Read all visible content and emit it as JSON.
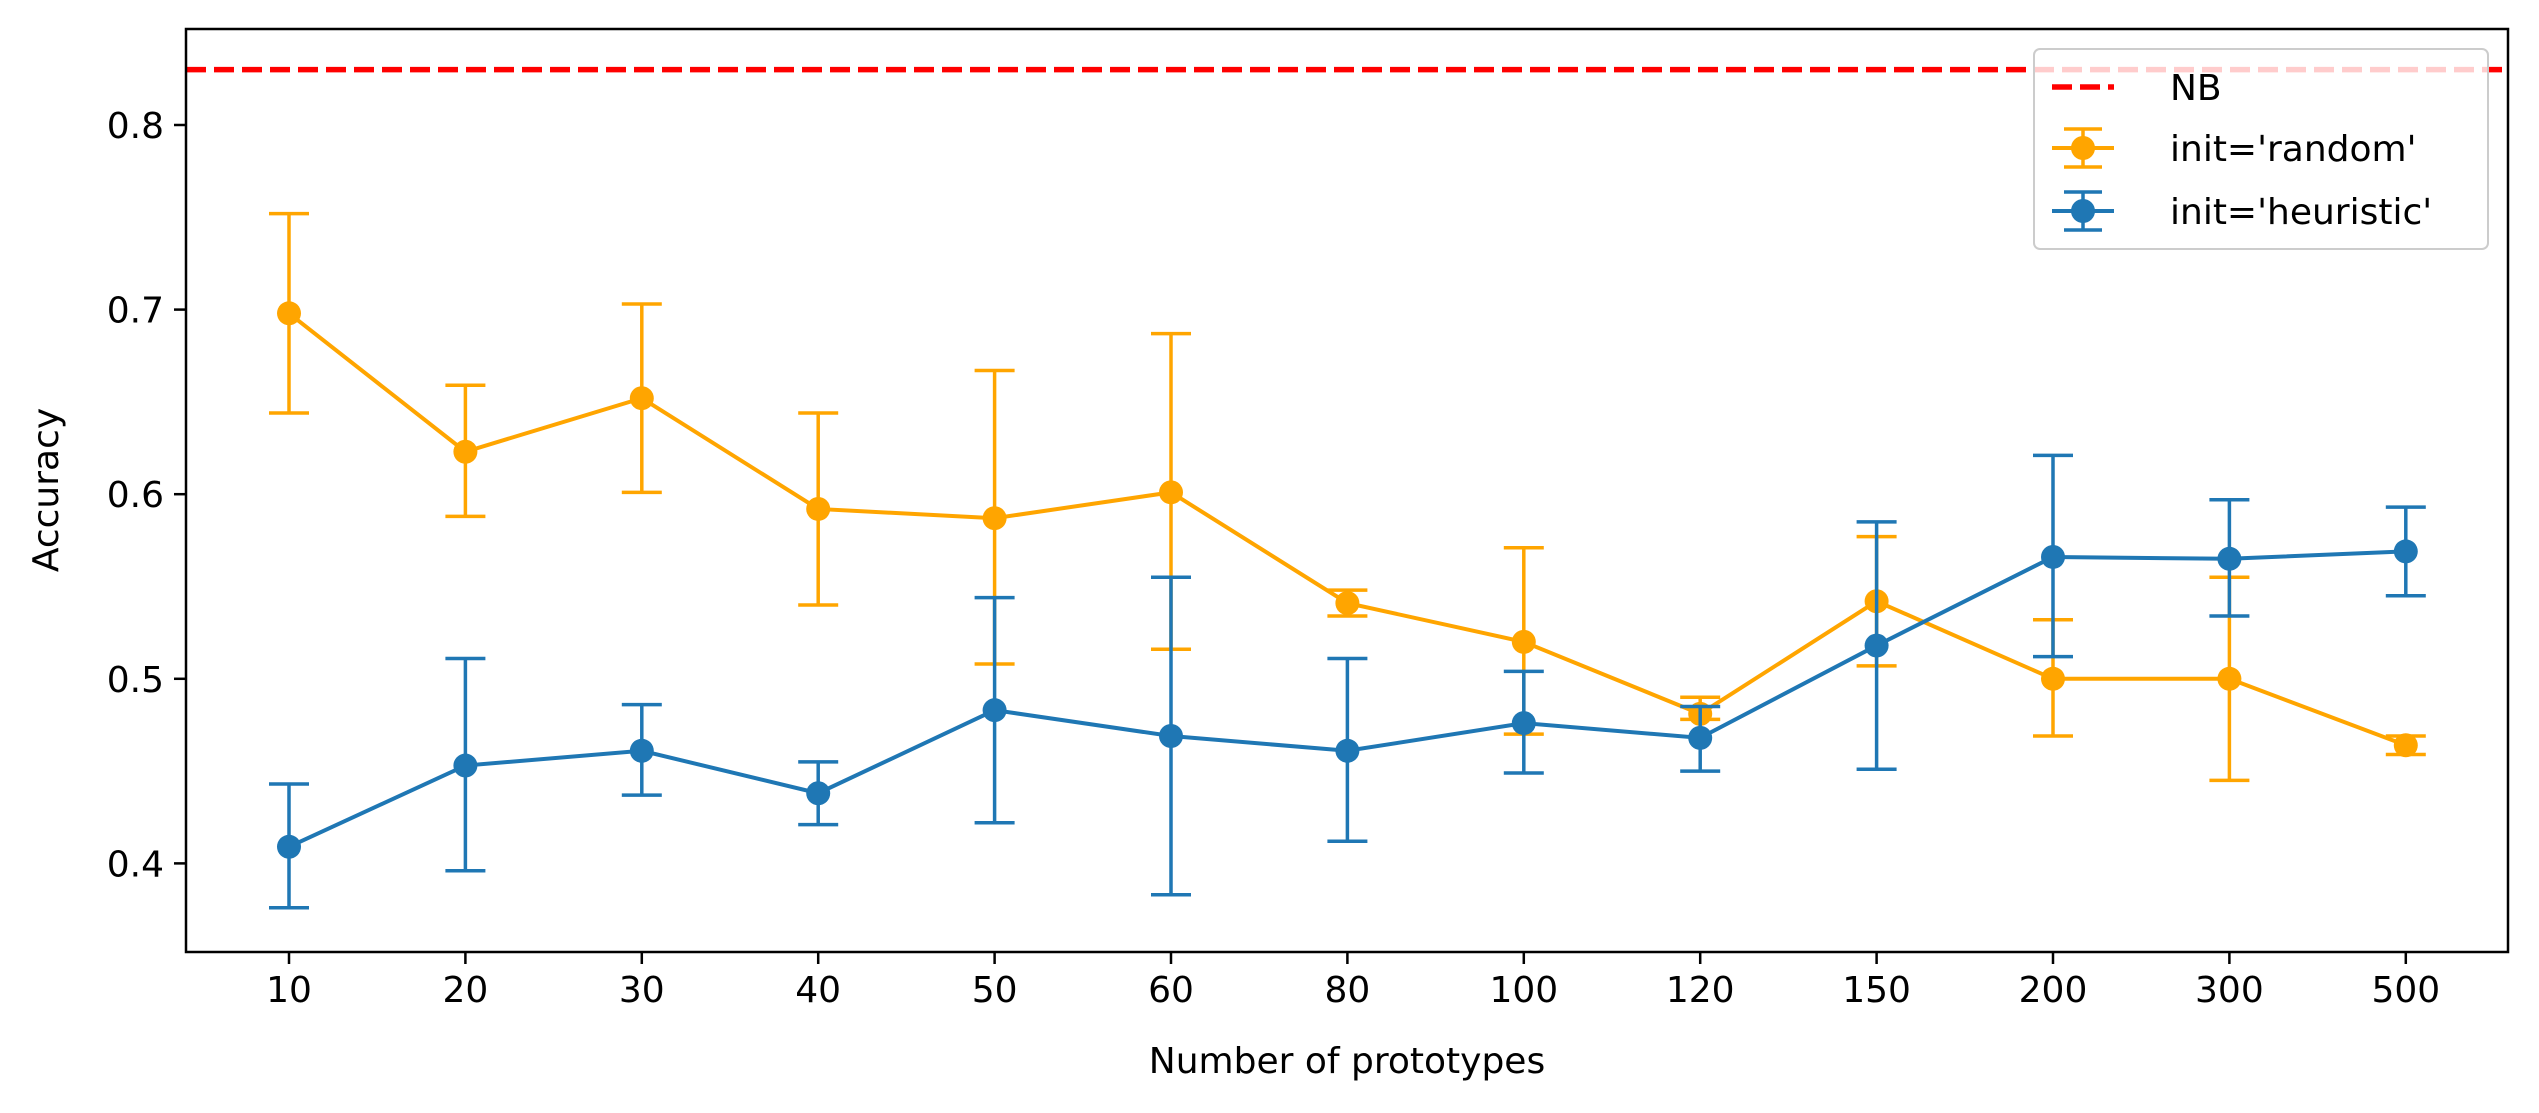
{
  "chart_data": {
    "type": "line",
    "title": "",
    "xlabel": "Number of prototypes",
    "ylabel": "Accuracy",
    "categories": [
      "10",
      "20",
      "30",
      "40",
      "50",
      "60",
      "80",
      "100",
      "120",
      "150",
      "200",
      "300",
      "500"
    ],
    "ylim": [
      0.352,
      0.852
    ],
    "yticks": [
      "0.4",
      "0.5",
      "0.6",
      "0.7",
      "0.8"
    ],
    "grid": false,
    "legend_position": "top-right",
    "reference_line": {
      "name": "NB",
      "value": 0.83,
      "color": "#ff0000",
      "style": "dashed"
    },
    "series": [
      {
        "name": "init='random'",
        "color": "#ffa500",
        "values": [
          0.698,
          0.623,
          0.652,
          0.592,
          0.587,
          0.601,
          0.541,
          0.52,
          0.481,
          0.542,
          0.5,
          0.5,
          0.464
        ],
        "lower": [
          0.644,
          0.588,
          0.601,
          0.54,
          0.508,
          0.516,
          0.534,
          0.47,
          0.478,
          0.507,
          0.469,
          0.445,
          0.459
        ],
        "upper": [
          0.752,
          0.659,
          0.703,
          0.644,
          0.667,
          0.687,
          0.548,
          0.571,
          0.49,
          0.577,
          0.532,
          0.555,
          0.469
        ]
      },
      {
        "name": "init='heuristic'",
        "color": "#1f77b4",
        "values": [
          0.409,
          0.453,
          0.461,
          0.438,
          0.483,
          0.469,
          0.461,
          0.476,
          0.468,
          0.518,
          0.566,
          0.565,
          0.569
        ],
        "lower": [
          0.376,
          0.396,
          0.437,
          0.421,
          0.422,
          0.383,
          0.412,
          0.449,
          0.45,
          0.451,
          0.512,
          0.534,
          0.545
        ],
        "upper": [
          0.443,
          0.511,
          0.486,
          0.455,
          0.544,
          0.555,
          0.511,
          0.504,
          0.485,
          0.585,
          0.621,
          0.597,
          0.593
        ]
      }
    ]
  }
}
